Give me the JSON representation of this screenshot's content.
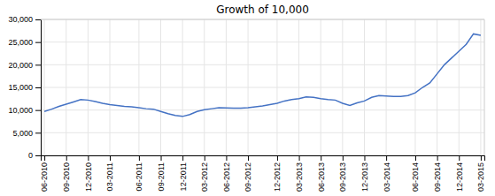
{
  "chart_data": {
    "type": "line",
    "title": "Growth of 10,000",
    "categories": [
      "06-2010",
      null,
      null,
      "09-2010",
      null,
      null,
      "12-2010",
      null,
      null,
      "03-2011",
      null,
      null,
      null,
      "06-2011",
      null,
      null,
      "09-2011",
      null,
      null,
      "12-2011",
      null,
      null,
      "03-2012",
      null,
      null,
      "06-2012",
      null,
      null,
      "09-2012",
      null,
      null,
      null,
      "12-2012",
      null,
      null,
      "03-2013",
      null,
      null,
      "06-2013",
      null,
      null,
      "09-2013",
      null,
      null,
      "12-2013",
      null,
      null,
      "03-2014",
      null,
      null,
      null,
      "06-2014",
      null,
      null,
      "09-2014",
      null,
      null,
      "12-2014",
      null,
      null,
      "03-2015"
    ],
    "values": [
      9700,
      10200,
      10800,
      11300,
      11800,
      12300,
      12200,
      11900,
      11500,
      11200,
      11000,
      10800,
      10700,
      10500,
      10300,
      10200,
      9700,
      9200,
      8800,
      8600,
      9000,
      9700,
      10100,
      10300,
      10500,
      10450,
      10400,
      10400,
      10500,
      10700,
      10900,
      11200,
      11500,
      12000,
      12300,
      12500,
      12900,
      12800,
      12500,
      12300,
      12200,
      11500,
      11000,
      11600,
      12000,
      12800,
      13200,
      13100,
      13000,
      13000,
      13200,
      13800,
      15000,
      16000,
      18000,
      20000,
      21500,
      23000,
      24500,
      26800,
      26500
    ],
    "color": "#4472c4",
    "ylim": [
      0,
      30000
    ],
    "yticks": [
      0,
      {
        "value": 5000,
        "label": "5,000"
      },
      {
        "value": 10000,
        "label": "10,000"
      },
      {
        "value": 15000,
        "label": "15,000"
      },
      {
        "value": 20000,
        "label": "20,000"
      },
      {
        "value": 25000,
        "label": "25,000"
      },
      {
        "value": 30000,
        "label": "30,000"
      }
    ],
    "grid": true
  }
}
